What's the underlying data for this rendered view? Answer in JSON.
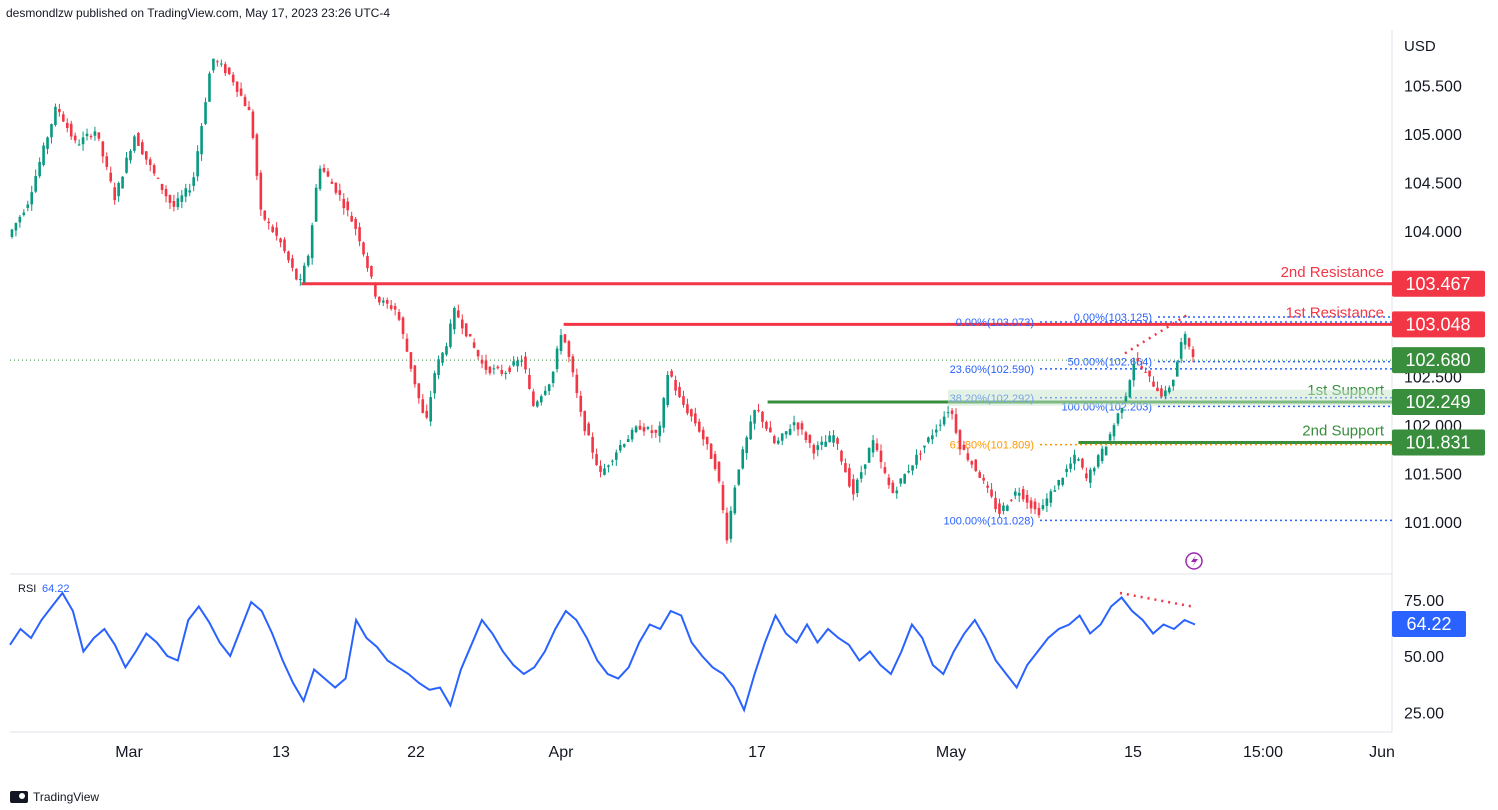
{
  "header": {
    "published_text": "desmondlzw published on TradingView.com, May 17, 2023 23:26 UTC-4"
  },
  "footer": {
    "brand": "TradingView"
  },
  "chart_data": [
    {
      "type": "candlestick",
      "currency": "USD",
      "y_ticks": [
        "105.500",
        "105.000",
        "104.500",
        "104.000",
        "102.500",
        "102.000",
        "101.500",
        "101.000"
      ],
      "y_tick_values": [
        105.5,
        105.0,
        104.5,
        104.0,
        102.5,
        102.0,
        101.5,
        101.0
      ],
      "ylim": [
        100.62,
        106.0
      ],
      "x_ticks": [
        "Mar",
        "13",
        "22",
        "Apr",
        "17",
        "May",
        "15",
        "15:00",
        "Jun"
      ],
      "current_price": 102.68,
      "price_path": [
        {
          "t": 0,
          "v": 103.95
        },
        {
          "t": 2,
          "v": 104.3
        },
        {
          "t": 5,
          "v": 105.3
        },
        {
          "t": 7,
          "v": 104.9
        },
        {
          "t": 9,
          "v": 105.05
        },
        {
          "t": 11,
          "v": 104.35
        },
        {
          "t": 13,
          "v": 105.0
        },
        {
          "t": 15,
          "v": 104.6
        },
        {
          "t": 17,
          "v": 104.25
        },
        {
          "t": 19,
          "v": 104.5
        },
        {
          "t": 21,
          "v": 105.8
        },
        {
          "t": 23,
          "v": 105.6
        },
        {
          "t": 25,
          "v": 105.2
        },
        {
          "t": 26,
          "v": 104.2
        },
        {
          "t": 28,
          "v": 103.9
        },
        {
          "t": 30,
          "v": 103.45
        },
        {
          "t": 31,
          "v": 103.8
        },
        {
          "t": 32,
          "v": 104.7
        },
        {
          "t": 34,
          "v": 104.4
        },
        {
          "t": 36,
          "v": 104.0
        },
        {
          "t": 38,
          "v": 103.3
        },
        {
          "t": 40,
          "v": 103.2
        },
        {
          "t": 42,
          "v": 102.4
        },
        {
          "t": 43,
          "v": 102.0
        },
        {
          "t": 44,
          "v": 102.6
        },
        {
          "t": 45,
          "v": 102.8
        },
        {
          "t": 46,
          "v": 103.2
        },
        {
          "t": 47,
          "v": 103.0
        },
        {
          "t": 49,
          "v": 102.6
        },
        {
          "t": 51,
          "v": 102.55
        },
        {
          "t": 53,
          "v": 102.7
        },
        {
          "t": 54,
          "v": 102.2
        },
        {
          "t": 56,
          "v": 102.5
        },
        {
          "t": 57,
          "v": 103.0
        },
        {
          "t": 58,
          "v": 102.6
        },
        {
          "t": 59,
          "v": 102.1
        },
        {
          "t": 61,
          "v": 101.5
        },
        {
          "t": 63,
          "v": 101.8
        },
        {
          "t": 65,
          "v": 102.0
        },
        {
          "t": 67,
          "v": 101.9
        },
        {
          "t": 68,
          "v": 102.6
        },
        {
          "t": 69,
          "v": 102.3
        },
        {
          "t": 71,
          "v": 102.0
        },
        {
          "t": 73,
          "v": 101.55
        },
        {
          "t": 74,
          "v": 100.85
        },
        {
          "t": 75,
          "v": 101.5
        },
        {
          "t": 77,
          "v": 102.2
        },
        {
          "t": 79,
          "v": 101.8
        },
        {
          "t": 81,
          "v": 102.05
        },
        {
          "t": 83,
          "v": 101.75
        },
        {
          "t": 85,
          "v": 101.9
        },
        {
          "t": 87,
          "v": 101.3
        },
        {
          "t": 89,
          "v": 101.85
        },
        {
          "t": 91,
          "v": 101.3
        },
        {
          "t": 93,
          "v": 101.6
        },
        {
          "t": 95,
          "v": 101.9
        },
        {
          "t": 97,
          "v": 102.2
        },
        {
          "t": 98,
          "v": 101.8
        },
        {
          "t": 100,
          "v": 101.5
        },
        {
          "t": 102,
          "v": 101.1
        },
        {
          "t": 104,
          "v": 101.35
        },
        {
          "t": 106,
          "v": 101.1
        },
        {
          "t": 108,
          "v": 101.4
        },
        {
          "t": 110,
          "v": 101.7
        },
        {
          "t": 111,
          "v": 101.45
        },
        {
          "t": 113,
          "v": 101.8
        },
        {
          "t": 115,
          "v": 102.3
        },
        {
          "t": 116,
          "v": 102.7
        },
        {
          "t": 117,
          "v": 102.55
        },
        {
          "t": 119,
          "v": 102.3
        },
        {
          "t": 120,
          "v": 102.5
        },
        {
          "t": 121,
          "v": 102.95
        },
        {
          "t": 122,
          "v": 102.75
        }
      ],
      "levels": [
        {
          "name": "2nd Resistance",
          "value": 103.467,
          "label": "103.467",
          "color": "#f23645",
          "from_t": 30
        },
        {
          "name": "1st Resistance",
          "value": 103.048,
          "label": "103.048",
          "color": "#f23645",
          "from_t": 57
        },
        {
          "name": "1st Support",
          "value": 102.249,
          "label": "102.249",
          "color": "#388e3c",
          "from_t": 78
        },
        {
          "name": "2nd Support",
          "value": 101.831,
          "label": "101.831",
          "color": "#388e3c",
          "from_t": 110
        }
      ],
      "current_label": "102.680",
      "fib_left": [
        {
          "label": "0.00%(103.073)",
          "value": 103.073
        },
        {
          "label": "23.60%(102.590)",
          "value": 102.59
        },
        {
          "label": "38.20%(102.292)",
          "value": 102.292
        },
        {
          "label": "61.80%(101.809)",
          "value": 101.809
        },
        {
          "label": "100.00%(101.028)",
          "value": 101.028
        }
      ],
      "fib_right": [
        {
          "label": "0.00%(103.125)",
          "value": 103.125
        },
        {
          "label": "50.00%(102.664)",
          "value": 102.664
        },
        {
          "label": "100.00%(102.203)",
          "value": 102.203
        }
      ]
    },
    {
      "type": "line",
      "name": "RSI",
      "value_label": "64.22",
      "current": 64.22,
      "y_ticks": [
        "75.00",
        "50.00",
        "25.00"
      ],
      "y_tick_values": [
        75,
        50,
        25
      ],
      "ylim": [
        18,
        82
      ],
      "values": [
        55,
        62,
        58,
        66,
        72,
        78,
        70,
        52,
        58,
        62,
        55,
        45,
        52,
        60,
        56,
        50,
        48,
        66,
        72,
        65,
        56,
        50,
        62,
        74,
        70,
        60,
        48,
        38,
        30,
        44,
        40,
        36,
        40,
        66,
        58,
        54,
        48,
        45,
        42,
        38,
        35,
        36,
        28,
        44,
        55,
        66,
        60,
        52,
        46,
        42,
        45,
        52,
        62,
        70,
        66,
        58,
        48,
        42,
        40,
        45,
        56,
        64,
        62,
        70,
        68,
        56,
        50,
        45,
        42,
        36,
        26,
        42,
        56,
        68,
        60,
        56,
        64,
        56,
        62,
        58,
        55,
        48,
        52,
        46,
        42,
        52,
        64,
        58,
        46,
        42,
        52,
        60,
        66,
        58,
        48,
        42,
        36,
        46,
        52,
        58,
        62,
        64,
        68,
        60,
        64,
        72,
        76,
        70,
        66,
        60,
        64,
        62,
        66,
        64
      ]
    }
  ]
}
